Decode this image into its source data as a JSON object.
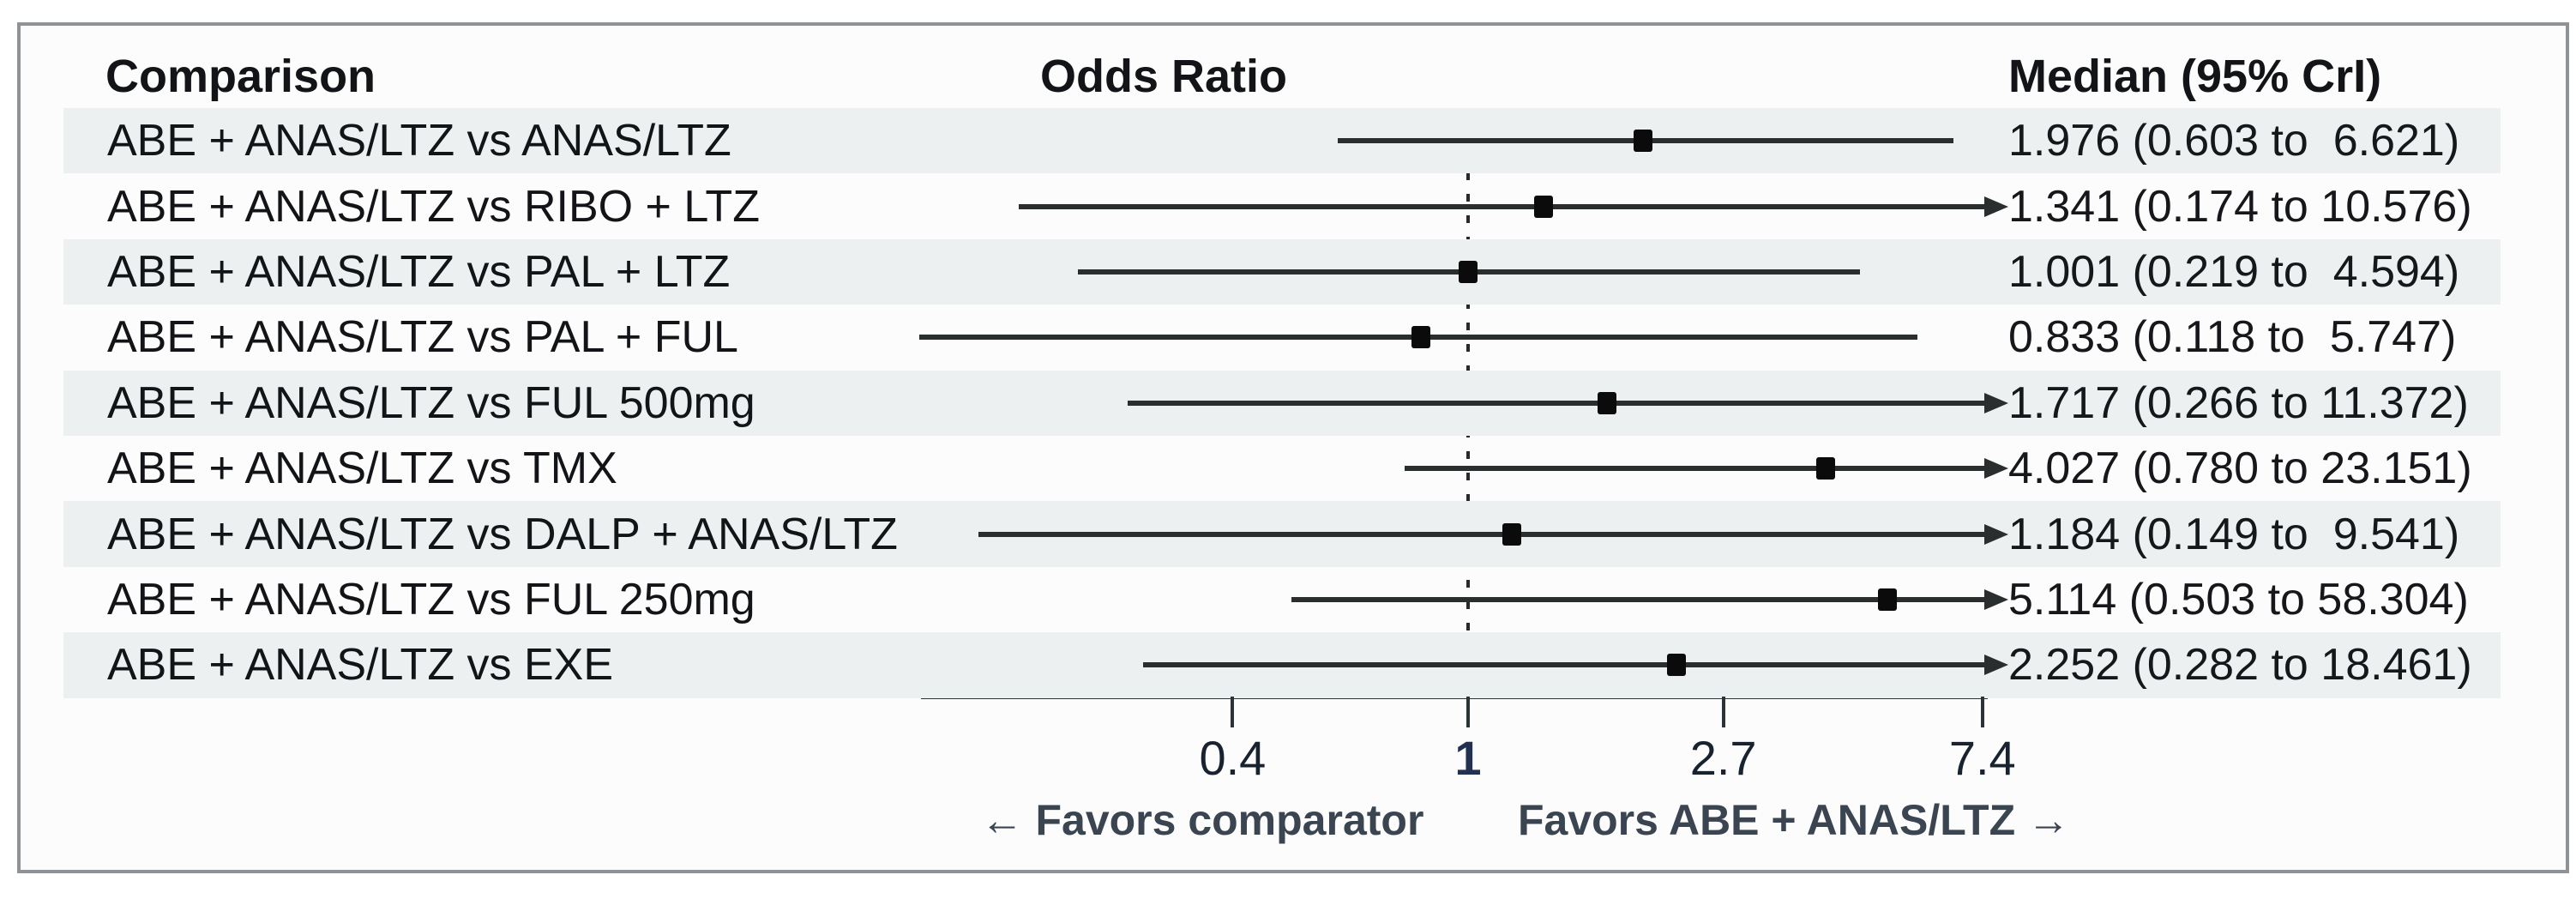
{
  "header": {
    "comparison": "Comparison",
    "odds_ratio": "Odds Ratio",
    "median": "Median (95% CrI)"
  },
  "chart_data": {
    "type": "forest",
    "title": "",
    "x_axis": {
      "scale": "log",
      "reference_line": 1,
      "clip_max": 7.4,
      "axis_range": [
        0.118,
        7.4
      ],
      "ticks": [
        {
          "value": 0.4,
          "label": "0.4",
          "emphasis": false
        },
        {
          "value": 1,
          "label": "1",
          "emphasis": true
        },
        {
          "value": 2.7,
          "label": "2.7",
          "emphasis": false
        },
        {
          "value": 7.4,
          "label": "7.4",
          "emphasis": false
        }
      ]
    },
    "rows": [
      {
        "label": "ABE + ANAS/LTZ vs ANAS/LTZ",
        "median": 1.976,
        "lower": 0.603,
        "upper": 6.621,
        "display": "1.976 (0.603 to  6.621)"
      },
      {
        "label": "ABE + ANAS/LTZ vs RIBO + LTZ",
        "median": 1.341,
        "lower": 0.174,
        "upper": 10.576,
        "display": "1.341 (0.174 to 10.576)"
      },
      {
        "label": "ABE + ANAS/LTZ vs PAL + LTZ",
        "median": 1.001,
        "lower": 0.219,
        "upper": 4.594,
        "display": "1.001 (0.219 to  4.594)"
      },
      {
        "label": "ABE + ANAS/LTZ vs PAL + FUL",
        "median": 0.833,
        "lower": 0.118,
        "upper": 5.747,
        "display": "0.833 (0.118 to  5.747)"
      },
      {
        "label": "ABE + ANAS/LTZ vs FUL 500mg",
        "median": 1.717,
        "lower": 0.266,
        "upper": 11.372,
        "display": "1.717 (0.266 to 11.372)"
      },
      {
        "label": "ABE + ANAS/LTZ vs TMX",
        "median": 4.027,
        "lower": 0.78,
        "upper": 23.151,
        "display": "4.027 (0.780 to 23.151)"
      },
      {
        "label": "ABE + ANAS/LTZ vs DALP + ANAS/LTZ",
        "median": 1.184,
        "lower": 0.149,
        "upper": 9.541,
        "display": "1.184 (0.149 to  9.541)"
      },
      {
        "label": "ABE + ANAS/LTZ vs FUL 250mg",
        "median": 5.114,
        "lower": 0.503,
        "upper": 58.304,
        "display": "5.114 (0.503 to 58.304)"
      },
      {
        "label": "ABE + ANAS/LTZ vs EXE",
        "median": 2.252,
        "lower": 0.282,
        "upper": 18.461,
        "display": "2.252 (0.282 to 18.461)"
      }
    ],
    "footer": {
      "left": "← Favors comparator",
      "right": "Favors ABE + ANAS/LTZ →"
    },
    "legend_position": "none",
    "grid": false
  },
  "colors": {
    "band": "#ecf0f1",
    "ci_line": "#2b2e2e",
    "marker": "#0b0b0b",
    "axis": "#2c3336",
    "border": "#909396",
    "favors_text": "#3b4552"
  }
}
